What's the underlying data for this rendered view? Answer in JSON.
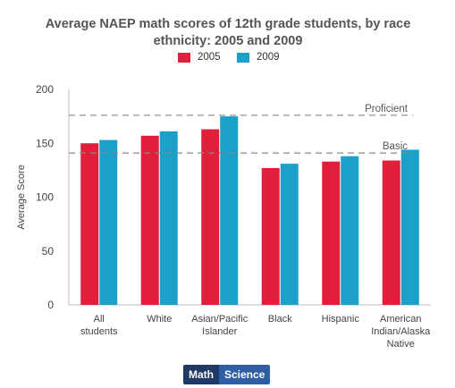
{
  "chart_data": {
    "type": "bar",
    "title": "Average NAEP math scores of 12th grade students, by race ethnicity: 2005 and 2009",
    "xlabel": "",
    "ylabel": "Average Score",
    "ylim": [
      0,
      200
    ],
    "yticks": [
      0,
      50,
      100,
      150,
      200
    ],
    "categories": [
      "All students",
      "White",
      "Asian/Pacific Islander",
      "Black",
      "Hispanic",
      "American Indian/Alaska Native"
    ],
    "category_lines": [
      [
        "All",
        "students"
      ],
      [
        "White"
      ],
      [
        "Asian/Pacific",
        "Islander"
      ],
      [
        "Black"
      ],
      [
        "Hispanic"
      ],
      [
        "American",
        "Indian/Alaska",
        "Native"
      ]
    ],
    "series": [
      {
        "name": "2005",
        "color": "#e0203a",
        "values": [
          150,
          157,
          163,
          127,
          133,
          134
        ]
      },
      {
        "name": "2009",
        "color": "#1aa0c9",
        "values": [
          153,
          161,
          175,
          131,
          138,
          144
        ]
      }
    ],
    "reference_lines": [
      {
        "label": "Proficient",
        "value": 176
      },
      {
        "label": "Basic",
        "value": 141
      }
    ],
    "grid": false,
    "legend_position": "top-center"
  },
  "tabs": [
    {
      "label": "Math",
      "active": true
    },
    {
      "label": "Science",
      "active": false
    }
  ]
}
